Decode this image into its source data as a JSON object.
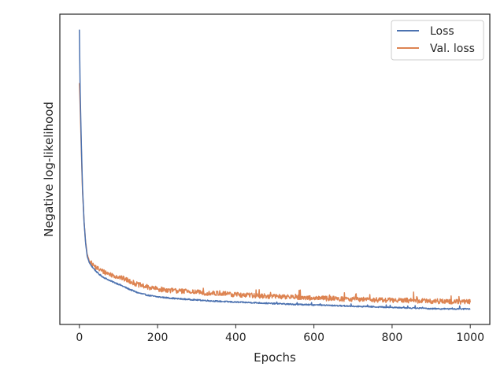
{
  "chart_data": {
    "type": "line",
    "title": "",
    "xlabel": "Epochs",
    "ylabel": "Negative log-likelihood",
    "xlim": [
      -50,
      1050
    ],
    "ylim": [
      0,
      100
    ],
    "x_ticks": [
      0,
      200,
      400,
      600,
      800,
      1000
    ],
    "x_tick_labels": [
      "0",
      "200",
      "400",
      "600",
      "800",
      "1000"
    ],
    "y_ticks_shown": false,
    "grid": false,
    "legend": {
      "position": "top-right"
    },
    "series": [
      {
        "name": "Loss",
        "color": "#4c72b0",
        "noise": 0.4,
        "x": [
          0,
          2,
          5,
          8,
          12,
          16,
          20,
          25,
          30,
          40,
          50,
          60,
          80,
          100,
          125,
          150,
          175,
          200,
          250,
          300,
          350,
          400,
          450,
          500,
          550,
          600,
          650,
          700,
          750,
          800,
          850,
          900,
          950,
          1000
        ],
        "y": [
          95,
          75,
          58,
          44,
          33,
          26,
          22,
          20,
          19,
          17.5,
          16.2,
          15.3,
          14.0,
          13.0,
          11.5,
          10.2,
          9.4,
          8.9,
          8.3,
          7.9,
          7.5,
          7.2,
          7.0,
          6.7,
          6.5,
          6.3,
          6.1,
          5.9,
          5.7,
          5.5,
          5.3,
          5.1,
          5.0,
          5.0
        ]
      },
      {
        "name": "Val. loss",
        "color": "#dd8452",
        "noise": 1.6,
        "x": [
          0,
          2,
          5,
          8,
          12,
          16,
          20,
          25,
          30,
          40,
          50,
          60,
          80,
          100,
          125,
          150,
          175,
          200,
          250,
          300,
          350,
          400,
          450,
          500,
          550,
          600,
          650,
          700,
          750,
          800,
          850,
          900,
          950,
          1000
        ],
        "y": [
          78,
          70,
          56,
          43,
          33,
          26.5,
          22.5,
          20.6,
          19.8,
          18.6,
          17.8,
          17.1,
          16.1,
          15.3,
          14.2,
          12.8,
          12.0,
          11.4,
          10.8,
          10.4,
          10.0,
          9.6,
          9.3,
          9.0,
          8.8,
          8.5,
          8.3,
          8.1,
          8.0,
          7.8,
          7.7,
          7.5,
          7.4,
          7.3
        ]
      }
    ]
  }
}
